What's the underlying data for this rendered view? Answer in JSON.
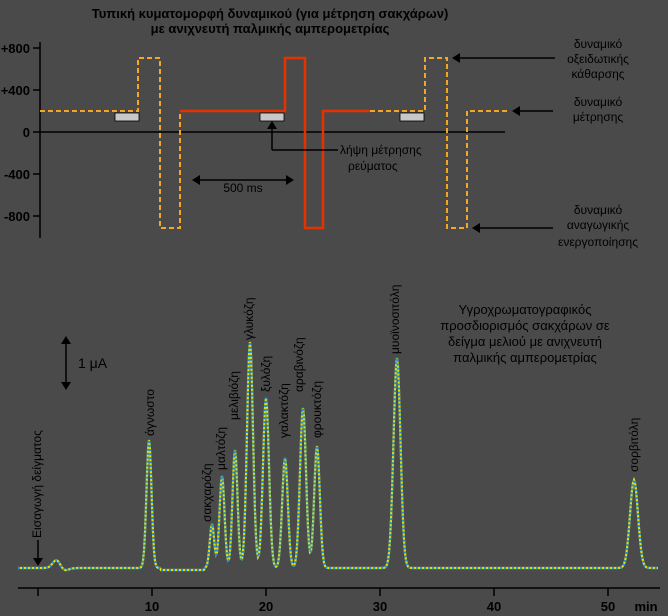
{
  "top": {
    "title_line1": "Τυπική κυματομορφή δυναμικού (για μέτρηση σακχάρων)",
    "title_line2": "με ανιχνευτή παλμικής αμπερομετρίας",
    "y_ticks": [
      "+800",
      "+400",
      "0",
      "-400",
      "-800"
    ],
    "time_label": "500 ms",
    "measure_label_1": "λήψη μέτρησης",
    "measure_label_2": "ρεύματος",
    "oxid_1": "δυναμικό",
    "oxid_2": "οξειδωτικής",
    "oxid_3": "κάθαρσης",
    "meas_1": "δυναμικό",
    "meas_2": "μέτρησης",
    "red_1": "δυναμικό",
    "red_2": "αναγωγικής",
    "red_3": "ενεργοποίησης",
    "colors": {
      "dashed": "#f5a623",
      "solid": "#e53000",
      "axis": "#000000"
    }
  },
  "bottom": {
    "scale_label": "1 μA",
    "title_1": "Υγροχρωματογραφικός",
    "title_2": "προσδιορισμός σακχάρων σε",
    "title_3": "δείγμα μελιού με ανιχνευτή",
    "title_4": "παλμικής αμπερομετρίας",
    "injection": "Εισαγωγή δείγματος",
    "x_ticks": [
      "10",
      "20",
      "30",
      "40",
      "50"
    ],
    "x_unit": "min",
    "peaks": [
      "άγνωστο",
      "σακχαρόζη",
      "μαλτόζη",
      "μελιβιόζη",
      "γλυκόζη",
      "ξυλόζη",
      "γαλακτόζη",
      "αραβινόζη",
      "φρουκτόζη",
      "μυοϊνοσιτόλη",
      "σορβιτόλη"
    ],
    "colors": {
      "trace_a": "#1e90e0",
      "trace_b": "#e8e000"
    }
  }
}
